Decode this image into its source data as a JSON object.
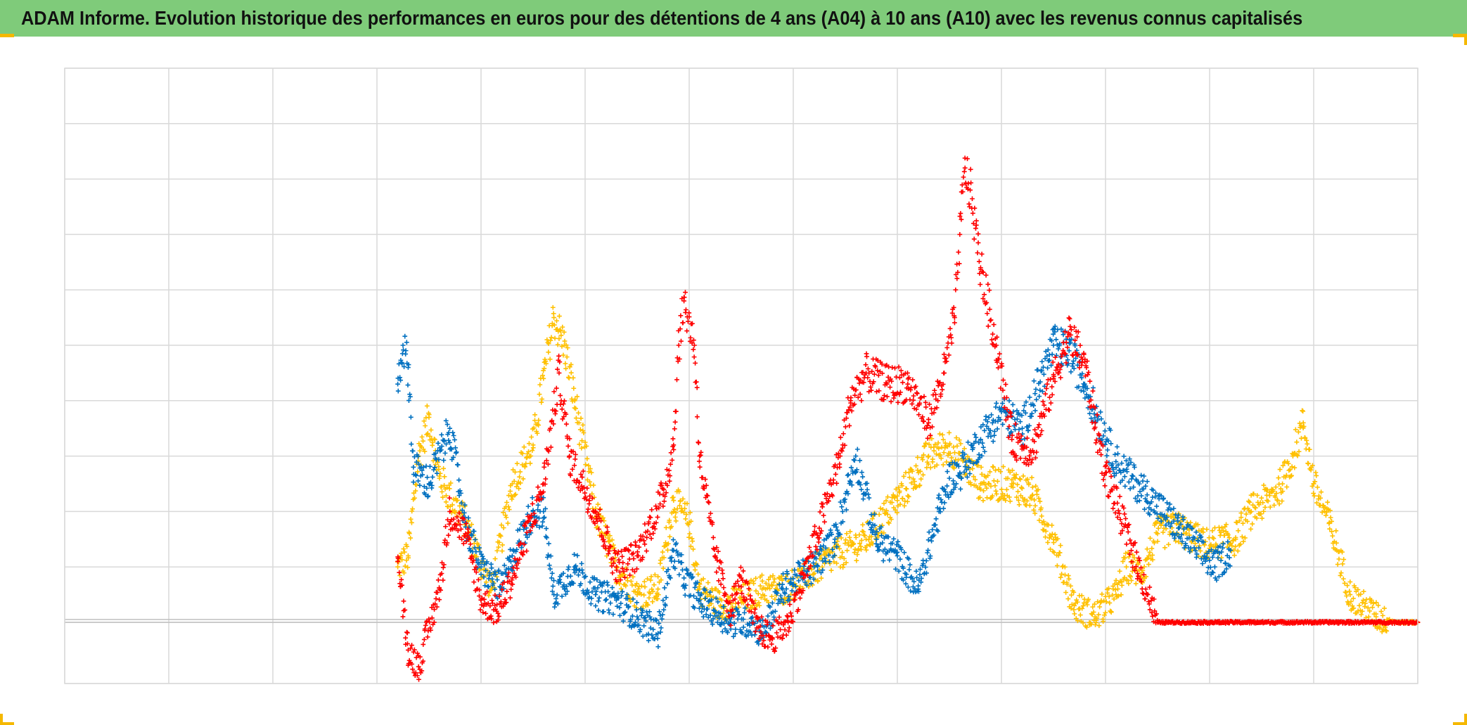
{
  "title": "ADAM Informe. Evolution historique des performances en euros pour des détentions de 4 ans (A04) à 10 ans (A10) avec les revenus connus capitalisés",
  "colors": {
    "title_bar": "#7fcb7a",
    "corner_accent": "#f5b800",
    "grid": "#d9d9d9",
    "zero_line": "#bfbfbf",
    "yellow_series": "#ffc000",
    "blue_series": "#0070c0",
    "red_series": "#ff0000"
  },
  "chart_data": {
    "type": "scatter",
    "marker": "plus",
    "title": "ADAM Informe. Evolution historique des performances en euros pour des détentions de 4 ans (A04) à 10 ans (A10) avec les revenus connus capitalisés",
    "xlabel": "",
    "ylabel": "",
    "x_tick_labels": [],
    "y_tick_labels": [],
    "grid": true,
    "legend": "none",
    "xlim": [
      0,
      13
    ],
    "ylim": [
      -1.1,
      10
    ],
    "note_units": "Axis tick labels are not printed; x in vertical-gridline intervals, y in horizontal-gridline intervals above the double baseline.",
    "series": [
      {
        "color": "yellow",
        "points": [
          [
            3.2,
            1.0
          ],
          [
            3.3,
            1.2
          ],
          [
            3.4,
            3.0
          ],
          [
            3.5,
            3.7
          ],
          [
            3.6,
            2.6
          ],
          [
            3.85,
            1.8
          ],
          [
            4.1,
            0.6
          ],
          [
            4.3,
            2.5
          ],
          [
            4.5,
            3.2
          ],
          [
            4.6,
            4.4
          ],
          [
            4.7,
            5.5
          ],
          [
            4.8,
            5.0
          ],
          [
            4.9,
            4.0
          ],
          [
            5.1,
            2.0
          ],
          [
            5.3,
            1.0
          ],
          [
            5.5,
            0.5
          ],
          [
            5.7,
            0.6
          ],
          [
            5.85,
            2.2
          ],
          [
            6.0,
            1.8
          ],
          [
            6.1,
            0.6
          ],
          [
            6.3,
            0.3
          ],
          [
            6.5,
            0.4
          ],
          [
            6.7,
            0.6
          ],
          [
            6.9,
            0.6
          ],
          [
            7.1,
            0.8
          ],
          [
            7.4,
            1.2
          ],
          [
            7.7,
            1.5
          ],
          [
            8.0,
            2.2
          ],
          [
            8.3,
            3.0
          ],
          [
            8.5,
            3.2
          ],
          [
            8.8,
            2.5
          ],
          [
            9.1,
            2.5
          ],
          [
            9.3,
            2.3
          ],
          [
            9.5,
            1.5
          ],
          [
            9.7,
            0.3
          ],
          [
            9.9,
            0.1
          ],
          [
            10.1,
            0.5
          ],
          [
            10.2,
            1.0
          ],
          [
            10.35,
            0.9
          ],
          [
            10.5,
            1.6
          ],
          [
            10.7,
            1.7
          ],
          [
            10.95,
            1.4
          ],
          [
            11.25,
            1.5
          ],
          [
            11.4,
            2.0
          ],
          [
            11.55,
            2.2
          ],
          [
            11.7,
            2.5
          ],
          [
            11.8,
            3.0
          ],
          [
            11.9,
            3.6
          ],
          [
            12.0,
            2.5
          ],
          [
            12.15,
            1.8
          ],
          [
            12.35,
            0.5
          ],
          [
            12.6,
            0.1
          ],
          [
            12.8,
            0.0
          ],
          [
            13.0,
            0.0
          ]
        ]
      },
      {
        "color": "blue",
        "points": [
          [
            3.2,
            4.3
          ],
          [
            3.25,
            5.0
          ],
          [
            3.3,
            4.6
          ],
          [
            3.35,
            2.8
          ],
          [
            3.5,
            2.5
          ],
          [
            3.7,
            3.5
          ],
          [
            3.85,
            1.8
          ],
          [
            4.0,
            1.0
          ],
          [
            4.2,
            0.6
          ],
          [
            4.3,
            1.2
          ],
          [
            4.5,
            2.0
          ],
          [
            4.6,
            2.0
          ],
          [
            4.7,
            0.5
          ],
          [
            4.9,
            1.0
          ],
          [
            5.1,
            0.5
          ],
          [
            5.3,
            0.4
          ],
          [
            5.5,
            0.1
          ],
          [
            5.7,
            -0.2
          ],
          [
            5.85,
            1.3
          ],
          [
            5.95,
            0.8
          ],
          [
            6.1,
            0.4
          ],
          [
            6.4,
            0.0
          ],
          [
            6.6,
            0.0
          ],
          [
            6.7,
            -0.2
          ],
          [
            6.9,
            0.6
          ],
          [
            7.2,
            1.0
          ],
          [
            7.4,
            1.5
          ],
          [
            7.6,
            3.0
          ],
          [
            7.8,
            1.5
          ],
          [
            8.0,
            1.2
          ],
          [
            8.2,
            0.6
          ],
          [
            8.4,
            2.0
          ],
          [
            8.5,
            2.6
          ],
          [
            8.6,
            2.7
          ],
          [
            8.8,
            3.3
          ],
          [
            9.0,
            3.8
          ],
          [
            9.2,
            3.5
          ],
          [
            9.5,
            5.0
          ],
          [
            9.65,
            4.9
          ],
          [
            9.8,
            4.3
          ],
          [
            10.1,
            2.9
          ],
          [
            10.4,
            2.3
          ],
          [
            10.7,
            1.7
          ],
          [
            10.95,
            1.2
          ],
          [
            11.05,
            1.0
          ],
          [
            11.2,
            1.3
          ]
        ]
      },
      {
        "color": "red",
        "points": [
          [
            3.2,
            1.1
          ],
          [
            3.3,
            -0.5
          ],
          [
            3.4,
            -0.8
          ],
          [
            3.6,
            0.6
          ],
          [
            3.7,
            2.0
          ],
          [
            3.85,
            1.6
          ],
          [
            4.0,
            0.4
          ],
          [
            4.15,
            0.2
          ],
          [
            4.3,
            0.8
          ],
          [
            4.6,
            2.5
          ],
          [
            4.75,
            4.5
          ],
          [
            4.85,
            3.0
          ],
          [
            5.1,
            2.0
          ],
          [
            5.3,
            1.0
          ],
          [
            5.5,
            1.2
          ],
          [
            5.75,
            2.3
          ],
          [
            5.85,
            3.2
          ],
          [
            5.9,
            5.0
          ],
          [
            5.95,
            5.8
          ],
          [
            6.05,
            5.0
          ],
          [
            6.1,
            3.0
          ],
          [
            6.25,
            1.2
          ],
          [
            6.4,
            0.2
          ],
          [
            6.5,
            0.8
          ],
          [
            6.65,
            -0.1
          ],
          [
            6.8,
            -0.3
          ],
          [
            6.95,
            0.0
          ],
          [
            7.1,
            0.8
          ],
          [
            7.25,
            1.7
          ],
          [
            7.45,
            3.0
          ],
          [
            7.55,
            4.0
          ],
          [
            7.7,
            4.5
          ],
          [
            7.9,
            4.3
          ],
          [
            8.1,
            4.3
          ],
          [
            8.3,
            3.6
          ],
          [
            8.45,
            4.5
          ],
          [
            8.55,
            5.5
          ],
          [
            8.6,
            7.0
          ],
          [
            8.65,
            8.2
          ],
          [
            8.7,
            7.8
          ],
          [
            8.8,
            6.4
          ],
          [
            8.95,
            5.0
          ],
          [
            9.1,
            3.3
          ],
          [
            9.3,
            3.1
          ],
          [
            9.5,
            4.4
          ],
          [
            9.65,
            5.2
          ],
          [
            9.8,
            4.7
          ],
          [
            9.9,
            3.6
          ],
          [
            10.0,
            2.7
          ],
          [
            10.5,
            0.0
          ],
          [
            11.0,
            0.0
          ],
          [
            11.5,
            0.0
          ],
          [
            12.0,
            0.0
          ],
          [
            12.5,
            0.0
          ],
          [
            13.0,
            0.0
          ]
        ]
      }
    ]
  }
}
